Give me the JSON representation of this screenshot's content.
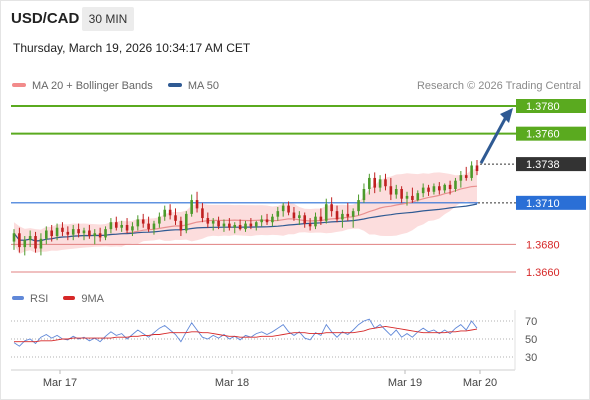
{
  "header": {
    "symbol": "USD/CAD",
    "timeframe": "30 MIN",
    "timestamp": "Thursday, March 19, 2026 10:34:17 AM CET"
  },
  "legend_main": [
    {
      "label": "MA 20 + Bollinger Bands",
      "color": "#f28b8b"
    },
    {
      "label": "MA 50",
      "color": "#2f5a93"
    }
  ],
  "credit": "Research © 2026 Trading Central",
  "legend_rsi": [
    {
      "label": "RSI",
      "color": "#6088d8"
    },
    {
      "label": "9MA",
      "color": "#d62828"
    }
  ],
  "colors": {
    "resistance": "#5aaa1f",
    "support": "#e08080",
    "pivot": "#2a6fd6",
    "current": "#333333",
    "bull": "#4c9a2a",
    "bear": "#c02020",
    "arrow": "#2f5a93",
    "ma50": "#2f5a93",
    "ma20": "#e89090",
    "band": "#fbd2d2"
  },
  "chart_data": [
    {
      "type": "candlestick",
      "x_ticks": [
        "Mar 17",
        "Mar 18",
        "Mar 19",
        "Mar 20"
      ],
      "ylim": [
        1.365,
        1.379
      ],
      "levels": [
        {
          "value": 1.378,
          "label": "1.3780",
          "kind": "resistance"
        },
        {
          "value": 1.376,
          "label": "1.3760",
          "kind": "resistance"
        },
        {
          "value": 1.3738,
          "label": "1.3738",
          "kind": "current"
        },
        {
          "value": 1.371,
          "label": "1.3710",
          "kind": "pivot"
        },
        {
          "value": 1.368,
          "label": "1.3680",
          "kind": "support"
        },
        {
          "value": 1.366,
          "label": "1.3660",
          "kind": "support"
        }
      ],
      "target_arrow": {
        "from": 1.3738,
        "to": 1.378
      },
      "candles": [
        [
          1.3682,
          1.3691,
          1.3676,
          1.3688
        ],
        [
          1.3688,
          1.3692,
          1.3674,
          1.3678
        ],
        [
          1.3678,
          1.3686,
          1.3672,
          1.3683
        ],
        [
          1.3683,
          1.369,
          1.3678,
          1.3686
        ],
        [
          1.3686,
          1.3689,
          1.3674,
          1.3677
        ],
        [
          1.3677,
          1.3688,
          1.3672,
          1.3684
        ],
        [
          1.3684,
          1.3693,
          1.368,
          1.369
        ],
        [
          1.369,
          1.3694,
          1.3682,
          1.3686
        ],
        [
          1.3686,
          1.3695,
          1.3683,
          1.3692
        ],
        [
          1.3692,
          1.3696,
          1.3686,
          1.3689
        ],
        [
          1.3689,
          1.3693,
          1.3683,
          1.3687
        ],
        [
          1.3687,
          1.3694,
          1.3683,
          1.3691
        ],
        [
          1.3691,
          1.3695,
          1.3685,
          1.3688
        ],
        [
          1.3688,
          1.3692,
          1.3683,
          1.369
        ],
        [
          1.369,
          1.3694,
          1.3684,
          1.3686
        ],
        [
          1.3686,
          1.3691,
          1.368,
          1.3688
        ],
        [
          1.3688,
          1.3692,
          1.3682,
          1.3685
        ],
        [
          1.3685,
          1.3693,
          1.3683,
          1.3691
        ],
        [
          1.3691,
          1.3699,
          1.3688,
          1.3696
        ],
        [
          1.3696,
          1.37,
          1.369,
          1.3692
        ],
        [
          1.3692,
          1.3697,
          1.3689,
          1.3694
        ],
        [
          1.3694,
          1.3699,
          1.3688,
          1.369
        ],
        [
          1.369,
          1.3696,
          1.3686,
          1.3693
        ],
        [
          1.3693,
          1.3701,
          1.369,
          1.3698
        ],
        [
          1.3698,
          1.3702,
          1.3692,
          1.3695
        ],
        [
          1.3695,
          1.37,
          1.3689,
          1.3691
        ],
        [
          1.3691,
          1.3697,
          1.3687,
          1.3695
        ],
        [
          1.3695,
          1.3703,
          1.3692,
          1.37
        ],
        [
          1.37,
          1.3708,
          1.3697,
          1.3705
        ],
        [
          1.3705,
          1.3709,
          1.3698,
          1.3701
        ],
        [
          1.3701,
          1.3706,
          1.3694,
          1.3697
        ],
        [
          1.3697,
          1.37,
          1.3686,
          1.369
        ],
        [
          1.369,
          1.3704,
          1.3688,
          1.3702
        ],
        [
          1.3702,
          1.3716,
          1.37,
          1.3712
        ],
        [
          1.3712,
          1.3718,
          1.3703,
          1.3706
        ],
        [
          1.3706,
          1.371,
          1.3696,
          1.3699
        ],
        [
          1.3699,
          1.3703,
          1.3692,
          1.3695
        ],
        [
          1.3695,
          1.3699,
          1.369,
          1.3697
        ],
        [
          1.3697,
          1.37,
          1.3691,
          1.3693
        ],
        [
          1.3693,
          1.3698,
          1.3689,
          1.3695
        ],
        [
          1.3695,
          1.3699,
          1.369,
          1.3692
        ],
        [
          1.3692,
          1.3696,
          1.3688,
          1.3694
        ],
        [
          1.3694,
          1.3698,
          1.369,
          1.3691
        ],
        [
          1.3691,
          1.3697,
          1.3689,
          1.3695
        ],
        [
          1.3695,
          1.3699,
          1.3691,
          1.3693
        ],
        [
          1.3693,
          1.3697,
          1.369,
          1.3696
        ],
        [
          1.3696,
          1.3701,
          1.3693,
          1.3698
        ],
        [
          1.3698,
          1.3702,
          1.3694,
          1.3696
        ],
        [
          1.3696,
          1.3702,
          1.3693,
          1.37
        ],
        [
          1.37,
          1.3707,
          1.3697,
          1.3704
        ],
        [
          1.3704,
          1.371,
          1.37,
          1.3708
        ],
        [
          1.3708,
          1.3711,
          1.3701,
          1.3703
        ],
        [
          1.3703,
          1.3707,
          1.3697,
          1.3699
        ],
        [
          1.3699,
          1.3704,
          1.3694,
          1.3701
        ],
        [
          1.3701,
          1.3703,
          1.3692,
          1.3695
        ],
        [
          1.3695,
          1.3699,
          1.369,
          1.3693
        ],
        [
          1.3693,
          1.3703,
          1.3691,
          1.37
        ],
        [
          1.37,
          1.3706,
          1.3694,
          1.3697
        ],
        [
          1.3697,
          1.3713,
          1.3695,
          1.3709
        ],
        [
          1.3709,
          1.3714,
          1.37,
          1.3704
        ],
        [
          1.3704,
          1.3708,
          1.3696,
          1.3698
        ],
        [
          1.3698,
          1.3705,
          1.3692,
          1.3702
        ],
        [
          1.3702,
          1.371,
          1.3697,
          1.37
        ],
        [
          1.37,
          1.3706,
          1.3692,
          1.3704
        ],
        [
          1.3704,
          1.3716,
          1.3701,
          1.3712
        ],
        [
          1.3712,
          1.3724,
          1.371,
          1.372
        ],
        [
          1.372,
          1.3731,
          1.3716,
          1.3728
        ],
        [
          1.3728,
          1.3732,
          1.3717,
          1.3721
        ],
        [
          1.3721,
          1.373,
          1.3718,
          1.3727
        ],
        [
          1.3727,
          1.3731,
          1.3719,
          1.3722
        ],
        [
          1.3722,
          1.3728,
          1.3712,
          1.3716
        ],
        [
          1.3716,
          1.3723,
          1.3713,
          1.372
        ],
        [
          1.372,
          1.3722,
          1.371,
          1.3713
        ],
        [
          1.3713,
          1.3718,
          1.3708,
          1.3715
        ],
        [
          1.3715,
          1.3721,
          1.371,
          1.3712
        ],
        [
          1.3712,
          1.3719,
          1.3711,
          1.3717
        ],
        [
          1.3717,
          1.3724,
          1.3714,
          1.3721
        ],
        [
          1.3721,
          1.3723,
          1.3715,
          1.3718
        ],
        [
          1.3718,
          1.3724,
          1.3716,
          1.3722
        ],
        [
          1.3722,
          1.3725,
          1.3716,
          1.3719
        ],
        [
          1.3719,
          1.3724,
          1.3717,
          1.3723
        ],
        [
          1.3723,
          1.3726,
          1.3716,
          1.372
        ],
        [
          1.372,
          1.3728,
          1.3718,
          1.3726
        ],
        [
          1.3726,
          1.3733,
          1.3721,
          1.373
        ],
        [
          1.373,
          1.3736,
          1.3726,
          1.3728
        ],
        [
          1.3728,
          1.374,
          1.3726,
          1.3737
        ],
        [
          1.3737,
          1.3741,
          1.373,
          1.3733
        ]
      ]
    },
    {
      "type": "line",
      "ylim": [
        20,
        80
      ],
      "y_ticks": [
        "70",
        "50",
        "30"
      ],
      "y_tick_values": [
        70,
        50,
        30
      ],
      "series": [
        {
          "name": "RSI",
          "values": [
            46,
            42,
            48,
            50,
            45,
            52,
            55,
            51,
            54,
            50,
            49,
            53,
            50,
            52,
            48,
            51,
            47,
            53,
            58,
            54,
            56,
            50,
            55,
            60,
            56,
            52,
            57,
            62,
            65,
            60,
            55,
            47,
            58,
            68,
            60,
            52,
            50,
            54,
            51,
            55,
            50,
            53,
            49,
            54,
            52,
            56,
            58,
            55,
            58,
            62,
            66,
            58,
            54,
            58,
            51,
            49,
            57,
            54,
            66,
            58,
            52,
            58,
            55,
            60,
            66,
            70,
            72,
            62,
            66,
            60,
            54,
            60,
            52,
            56,
            52,
            58,
            62,
            58,
            60,
            56,
            60,
            56,
            62,
            66,
            60,
            70,
            62
          ]
        },
        {
          "name": "9MA",
          "values": [
            47,
            47,
            47,
            47,
            47,
            48,
            48,
            48,
            49,
            50,
            50,
            51,
            51,
            51,
            51,
            51,
            51,
            51,
            51,
            52,
            52,
            52,
            53,
            53,
            54,
            54,
            55,
            55,
            56,
            57,
            57,
            57,
            57,
            58,
            58,
            57,
            57,
            56,
            55,
            54,
            53,
            53,
            52,
            52,
            52,
            52,
            53,
            53,
            53,
            54,
            55,
            56,
            57,
            57,
            57,
            56,
            56,
            56,
            57,
            57,
            57,
            57,
            57,
            57,
            58,
            59,
            61,
            62,
            63,
            64,
            63,
            62,
            61,
            60,
            59,
            58,
            57,
            57,
            57,
            57,
            57,
            58,
            58,
            59,
            59,
            60,
            61
          ]
        }
      ]
    }
  ]
}
